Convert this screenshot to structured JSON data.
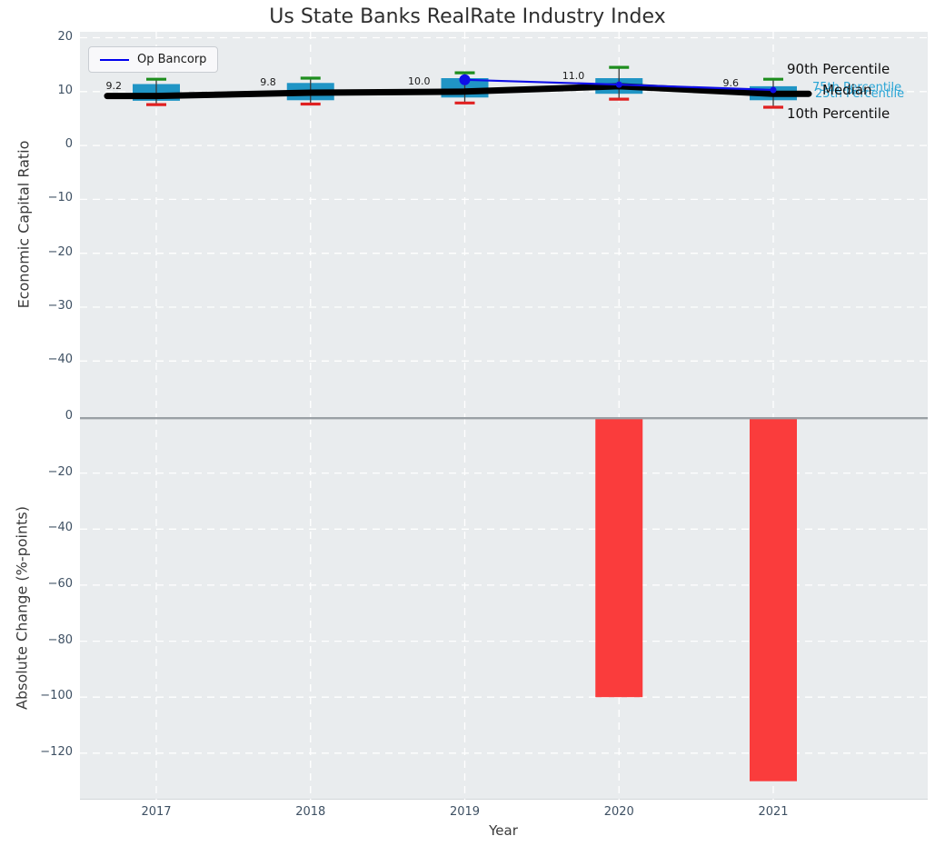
{
  "title": "Us State Banks RealRate Industry Index",
  "legend": {
    "label": "Op Bancorp"
  },
  "annotations": {
    "p90": "90th Percentile",
    "p75": "75th Percentile",
    "median": "Median",
    "p25": "25th Percentile",
    "p10": "10th Percentile"
  },
  "colors": {
    "box_fill": "#2095c5",
    "p90_cap": "#1e8e1e",
    "p10_cap": "#e02020",
    "median_line": "#000000",
    "op_bancorp_line": "#0f0fe8",
    "bar_negative": "#fa3c3c",
    "axes_bg": "#e9ecee",
    "grid": "#ffffff",
    "tick_label": "#3e5063",
    "percentile_text": "#2aa5d5"
  },
  "chart_data": [
    {
      "type": "boxplot+line",
      "title": "Us State Banks RealRate Industry Index",
      "ylabel": "Economic Capital Ratio",
      "categories": [
        "2017",
        "2018",
        "2019",
        "2020",
        "2021"
      ],
      "ylim": [
        -50.4,
        21.1
      ],
      "yticks": [
        20,
        10,
        0,
        -10,
        -20,
        -30,
        -40
      ],
      "grid": true,
      "legend_position": "upper left",
      "boxes": [
        {
          "year": "2017",
          "p10": 7.6,
          "p25": 8.3,
          "median": 9.2,
          "p75": 11.4,
          "p90": 12.3
        },
        {
          "year": "2018",
          "p10": 7.7,
          "p25": 8.4,
          "median": 9.8,
          "p75": 11.6,
          "p90": 12.5
        },
        {
          "year": "2019",
          "p10": 7.9,
          "p25": 8.9,
          "median": 10.0,
          "p75": 12.5,
          "p90": 13.5
        },
        {
          "year": "2020",
          "p10": 8.6,
          "p25": 9.6,
          "median": 11.0,
          "p75": 12.5,
          "p90": 14.5
        },
        {
          "year": "2021",
          "p10": 7.1,
          "p25": 8.4,
          "median": 9.6,
          "p75": 11.0,
          "p90": 12.3
        }
      ],
      "median_labels": [
        "9.2",
        "9.8",
        "10.0",
        "11.0",
        "9.6"
      ],
      "series": [
        {
          "name": "Median",
          "x": [
            "2017",
            "2018",
            "2019",
            "2020",
            "2021"
          ],
          "values": [
            9.2,
            9.8,
            10.0,
            11.0,
            9.6
          ]
        },
        {
          "name": "Op Bancorp",
          "x": [
            "2019",
            "2020",
            "2021"
          ],
          "values": [
            12.2,
            11.3,
            10.3
          ]
        }
      ]
    },
    {
      "type": "bar",
      "ylabel": "Absolute Change (%-points)",
      "xlabel": "Year",
      "categories": [
        "2017",
        "2018",
        "2019",
        "2020",
        "2021"
      ],
      "values": [
        0,
        0,
        0,
        -100,
        -130
      ],
      "ylim": [
        -136.6,
        0
      ],
      "yticks": [
        0,
        -20,
        -40,
        -60,
        -80,
        -100,
        -120
      ],
      "grid": true
    }
  ]
}
